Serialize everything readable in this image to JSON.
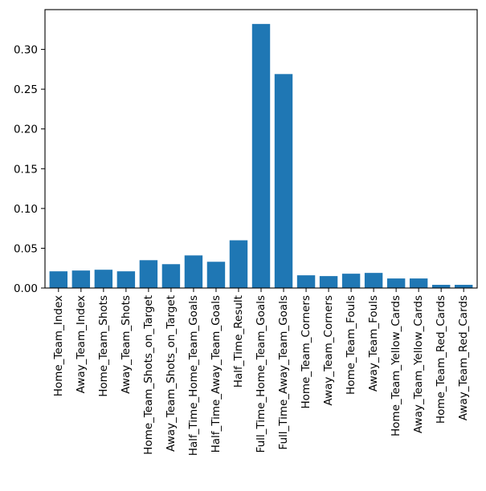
{
  "chart_data": {
    "type": "bar",
    "title": "",
    "xlabel": "",
    "ylabel": "",
    "ylim": [
      0,
      0.35
    ],
    "yticks": [
      0.0,
      0.05,
      0.1,
      0.15,
      0.2,
      0.25,
      0.3
    ],
    "ytick_labels": [
      "0.00",
      "0.05",
      "0.10",
      "0.15",
      "0.20",
      "0.25",
      "0.30"
    ],
    "grid": false,
    "bar_color": "#1f77b4",
    "categories": [
      "Home_Team_Index",
      "Away_Team_Index",
      "Home_Team_Shots",
      "Away_Team_Shots",
      "Home_Team_Shots_on_Target",
      "Away_Team_Shots_on_Target",
      "Half_Time_Home_Team_Goals",
      "Half_Time_Away_Team_Goals",
      "Half_Time_Result",
      "Full_Time_Home_Team_Goals",
      "Full_Time_Away_Team_Goals",
      "Home_Team_Corners",
      "Away_Team_Corners",
      "Home_Team_Fouls",
      "Away_Team_Fouls",
      "Home_Team_Yellow_Cards",
      "Away_Team_Yellow_Cards",
      "Home_Team_Red_Cards",
      "Away_Team_Red_Cards"
    ],
    "values": [
      0.021,
      0.022,
      0.023,
      0.021,
      0.035,
      0.03,
      0.041,
      0.033,
      0.06,
      0.332,
      0.269,
      0.016,
      0.015,
      0.018,
      0.019,
      0.012,
      0.012,
      0.004,
      0.004
    ]
  }
}
